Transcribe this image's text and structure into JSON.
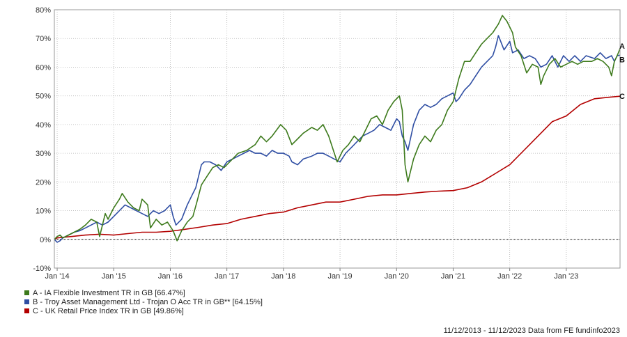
{
  "chart_data": {
    "type": "line",
    "y_axis": {
      "ticks": [
        "-10%",
        "0%",
        "10%",
        "20%",
        "30%",
        "40%",
        "50%",
        "60%",
        "70%",
        "80%"
      ],
      "values": [
        -10,
        0,
        10,
        20,
        30,
        40,
        50,
        60,
        70,
        80
      ],
      "ylim": [
        -10,
        80
      ]
    },
    "x_axis": {
      "ticks": [
        "Jan '14",
        "Jan '15",
        "Jan '16",
        "Jan '17",
        "Jan '18",
        "Jan '19",
        "Jan '20",
        "Jan '21",
        "Jan '22",
        "Jan '23"
      ],
      "values": [
        2014,
        2015,
        2016,
        2017,
        2018,
        2019,
        2020,
        2021,
        2022,
        2023
      ],
      "xlim": [
        2013.95,
        2023.95
      ]
    },
    "grid": true,
    "series": [
      {
        "label": "A",
        "name": "A - IA Flexible Investment TR in GB [66.47%]",
        "color": "#3d7a1c",
        "points": [
          [
            2013.95,
            0
          ],
          [
            2014.0,
            1
          ],
          [
            2014.05,
            1.5
          ],
          [
            2014.1,
            0.5
          ],
          [
            2014.2,
            1.5
          ],
          [
            2014.3,
            2.5
          ],
          [
            2014.4,
            3.5
          ],
          [
            2014.5,
            5
          ],
          [
            2014.6,
            7
          ],
          [
            2014.7,
            6
          ],
          [
            2014.75,
            1
          ],
          [
            2014.85,
            9
          ],
          [
            2014.9,
            7
          ],
          [
            2015.0,
            11
          ],
          [
            2015.1,
            14
          ],
          [
            2015.15,
            16
          ],
          [
            2015.25,
            13
          ],
          [
            2015.35,
            11
          ],
          [
            2015.45,
            10
          ],
          [
            2015.5,
            14
          ],
          [
            2015.6,
            12
          ],
          [
            2015.65,
            4
          ],
          [
            2015.75,
            7
          ],
          [
            2015.85,
            5
          ],
          [
            2015.95,
            6
          ],
          [
            2016.05,
            3
          ],
          [
            2016.12,
            -0.5
          ],
          [
            2016.2,
            3
          ],
          [
            2016.3,
            6
          ],
          [
            2016.4,
            8
          ],
          [
            2016.47,
            13
          ],
          [
            2016.55,
            19
          ],
          [
            2016.65,
            22
          ],
          [
            2016.75,
            25
          ],
          [
            2016.85,
            26
          ],
          [
            2016.95,
            25
          ],
          [
            2017.05,
            27
          ],
          [
            2017.2,
            30
          ],
          [
            2017.35,
            31
          ],
          [
            2017.5,
            33
          ],
          [
            2017.6,
            36
          ],
          [
            2017.7,
            34
          ],
          [
            2017.8,
            36
          ],
          [
            2017.95,
            40
          ],
          [
            2018.05,
            38
          ],
          [
            2018.15,
            33
          ],
          [
            2018.25,
            35
          ],
          [
            2018.35,
            37
          ],
          [
            2018.5,
            39
          ],
          [
            2018.6,
            38
          ],
          [
            2018.7,
            40
          ],
          [
            2018.8,
            36
          ],
          [
            2018.9,
            30
          ],
          [
            2018.95,
            27
          ],
          [
            2019.05,
            31
          ],
          [
            2019.15,
            33
          ],
          [
            2019.25,
            36
          ],
          [
            2019.35,
            34
          ],
          [
            2019.45,
            38
          ],
          [
            2019.55,
            42
          ],
          [
            2019.65,
            43
          ],
          [
            2019.75,
            40
          ],
          [
            2019.85,
            45
          ],
          [
            2019.95,
            48
          ],
          [
            2020.05,
            50
          ],
          [
            2020.1,
            45
          ],
          [
            2020.15,
            26
          ],
          [
            2020.2,
            20
          ],
          [
            2020.3,
            28
          ],
          [
            2020.4,
            33
          ],
          [
            2020.5,
            36
          ],
          [
            2020.6,
            34
          ],
          [
            2020.7,
            38
          ],
          [
            2020.8,
            40
          ],
          [
            2020.9,
            45
          ],
          [
            2021.0,
            48
          ],
          [
            2021.1,
            56
          ],
          [
            2021.2,
            62
          ],
          [
            2021.3,
            62
          ],
          [
            2021.4,
            65
          ],
          [
            2021.5,
            68
          ],
          [
            2021.6,
            70
          ],
          [
            2021.7,
            72
          ],
          [
            2021.8,
            75
          ],
          [
            2021.87,
            78
          ],
          [
            2021.95,
            76
          ],
          [
            2022.05,
            72
          ],
          [
            2022.1,
            67
          ],
          [
            2022.2,
            64
          ],
          [
            2022.3,
            58
          ],
          [
            2022.4,
            61
          ],
          [
            2022.5,
            60
          ],
          [
            2022.55,
            54
          ],
          [
            2022.6,
            57
          ],
          [
            2022.7,
            61
          ],
          [
            2022.8,
            63
          ],
          [
            2022.9,
            60
          ],
          [
            2023.0,
            61
          ],
          [
            2023.1,
            62
          ],
          [
            2023.2,
            61
          ],
          [
            2023.3,
            62
          ],
          [
            2023.45,
            62
          ],
          [
            2023.55,
            63
          ],
          [
            2023.65,
            62
          ],
          [
            2023.75,
            60
          ],
          [
            2023.8,
            57
          ],
          [
            2023.85,
            62
          ],
          [
            2023.9,
            64
          ],
          [
            2023.95,
            66.47
          ]
        ]
      },
      {
        "label": "B",
        "name": "B - Troy Asset Management Ltd - Trojan O Acc TR in GB** [64.15%]",
        "color": "#2f4ea3",
        "points": [
          [
            2013.95,
            0
          ],
          [
            2014.0,
            -1
          ],
          [
            2014.05,
            -0.5
          ],
          [
            2014.1,
            0.5
          ],
          [
            2014.2,
            1.5
          ],
          [
            2014.3,
            2.5
          ],
          [
            2014.4,
            3
          ],
          [
            2014.5,
            4
          ],
          [
            2014.6,
            5
          ],
          [
            2014.7,
            6
          ],
          [
            2014.8,
            5
          ],
          [
            2014.9,
            6
          ],
          [
            2015.0,
            8
          ],
          [
            2015.1,
            10
          ],
          [
            2015.2,
            12
          ],
          [
            2015.3,
            11
          ],
          [
            2015.4,
            10
          ],
          [
            2015.5,
            9
          ],
          [
            2015.6,
            8
          ],
          [
            2015.7,
            10
          ],
          [
            2015.8,
            9
          ],
          [
            2015.9,
            10
          ],
          [
            2016.0,
            12
          ],
          [
            2016.05,
            8
          ],
          [
            2016.1,
            5
          ],
          [
            2016.2,
            7
          ],
          [
            2016.3,
            12
          ],
          [
            2016.4,
            16
          ],
          [
            2016.45,
            18
          ],
          [
            2016.55,
            26
          ],
          [
            2016.6,
            27
          ],
          [
            2016.7,
            27
          ],
          [
            2016.8,
            26
          ],
          [
            2016.9,
            24
          ],
          [
            2017.0,
            27
          ],
          [
            2017.1,
            28
          ],
          [
            2017.2,
            29
          ],
          [
            2017.3,
            30
          ],
          [
            2017.4,
            31
          ],
          [
            2017.5,
            30
          ],
          [
            2017.6,
            30
          ],
          [
            2017.7,
            29
          ],
          [
            2017.8,
            31
          ],
          [
            2017.9,
            30
          ],
          [
            2018.0,
            30
          ],
          [
            2018.1,
            29
          ],
          [
            2018.15,
            27
          ],
          [
            2018.25,
            26
          ],
          [
            2018.35,
            28
          ],
          [
            2018.5,
            29
          ],
          [
            2018.6,
            30
          ],
          [
            2018.7,
            30
          ],
          [
            2018.8,
            29
          ],
          [
            2018.9,
            28
          ],
          [
            2019.0,
            27
          ],
          [
            2019.1,
            30
          ],
          [
            2019.2,
            32
          ],
          [
            2019.3,
            34
          ],
          [
            2019.4,
            36
          ],
          [
            2019.5,
            37
          ],
          [
            2019.6,
            38
          ],
          [
            2019.7,
            40
          ],
          [
            2019.8,
            39
          ],
          [
            2019.9,
            38
          ],
          [
            2020.0,
            42
          ],
          [
            2020.05,
            41
          ],
          [
            2020.1,
            36
          ],
          [
            2020.15,
            34
          ],
          [
            2020.2,
            31
          ],
          [
            2020.3,
            40
          ],
          [
            2020.4,
            45
          ],
          [
            2020.5,
            47
          ],
          [
            2020.6,
            46
          ],
          [
            2020.7,
            47
          ],
          [
            2020.8,
            49
          ],
          [
            2020.9,
            50
          ],
          [
            2021.0,
            51
          ],
          [
            2021.05,
            48
          ],
          [
            2021.1,
            49
          ],
          [
            2021.2,
            52
          ],
          [
            2021.3,
            54
          ],
          [
            2021.4,
            57
          ],
          [
            2021.5,
            60
          ],
          [
            2021.6,
            62
          ],
          [
            2021.7,
            64
          ],
          [
            2021.75,
            67
          ],
          [
            2021.8,
            71
          ],
          [
            2021.9,
            66
          ],
          [
            2022.0,
            69
          ],
          [
            2022.05,
            65
          ],
          [
            2022.15,
            66
          ],
          [
            2022.25,
            63
          ],
          [
            2022.35,
            64
          ],
          [
            2022.45,
            63
          ],
          [
            2022.55,
            60
          ],
          [
            2022.65,
            61
          ],
          [
            2022.75,
            64
          ],
          [
            2022.85,
            60
          ],
          [
            2022.95,
            64
          ],
          [
            2023.05,
            62
          ],
          [
            2023.15,
            64
          ],
          [
            2023.25,
            62
          ],
          [
            2023.35,
            64
          ],
          [
            2023.5,
            63
          ],
          [
            2023.6,
            65
          ],
          [
            2023.7,
            63
          ],
          [
            2023.8,
            64
          ],
          [
            2023.85,
            62
          ],
          [
            2023.9,
            64
          ],
          [
            2023.95,
            64.15
          ]
        ]
      },
      {
        "label": "C",
        "name": "C - UK Retail Price Index TR in GB [49.86%]",
        "color": "#b30000",
        "points": [
          [
            2013.95,
            0
          ],
          [
            2014.0,
            0.5
          ],
          [
            2014.25,
            1
          ],
          [
            2014.5,
            1.5
          ],
          [
            2014.75,
            1.8
          ],
          [
            2015.0,
            1.5
          ],
          [
            2015.25,
            2
          ],
          [
            2015.5,
            2.5
          ],
          [
            2015.75,
            2.5
          ],
          [
            2016.0,
            2.8
          ],
          [
            2016.25,
            3.5
          ],
          [
            2016.5,
            4.2
          ],
          [
            2016.75,
            5
          ],
          [
            2017.0,
            5.5
          ],
          [
            2017.25,
            7
          ],
          [
            2017.5,
            8
          ],
          [
            2017.75,
            9
          ],
          [
            2018.0,
            9.5
          ],
          [
            2018.25,
            11
          ],
          [
            2018.5,
            12
          ],
          [
            2018.75,
            13
          ],
          [
            2019.0,
            13
          ],
          [
            2019.25,
            14
          ],
          [
            2019.5,
            15
          ],
          [
            2019.75,
            15.5
          ],
          [
            2020.0,
            15.5
          ],
          [
            2020.25,
            16
          ],
          [
            2020.5,
            16.5
          ],
          [
            2020.75,
            16.8
          ],
          [
            2021.0,
            17
          ],
          [
            2021.25,
            18
          ],
          [
            2021.5,
            20
          ],
          [
            2021.75,
            23
          ],
          [
            2022.0,
            26
          ],
          [
            2022.25,
            31
          ],
          [
            2022.5,
            36
          ],
          [
            2022.75,
            41
          ],
          [
            2023.0,
            43
          ],
          [
            2023.25,
            47
          ],
          [
            2023.5,
            49
          ],
          [
            2023.75,
            49.5
          ],
          [
            2023.95,
            49.86
          ]
        ]
      }
    ],
    "end_labels": [
      "A",
      "B",
      "C"
    ],
    "legend": {
      "placement": "bottom-left",
      "items": [
        "A - IA Flexible Investment TR in GB [66.47%]",
        "B - Troy Asset Management Ltd - Trojan O Acc TR in GB** [64.15%]",
        "C - UK Retail Price Index TR in GB [49.86%]"
      ]
    },
    "footer": "11/12/2013 - 11/12/2023 Data from FE fundinfo2023"
  }
}
